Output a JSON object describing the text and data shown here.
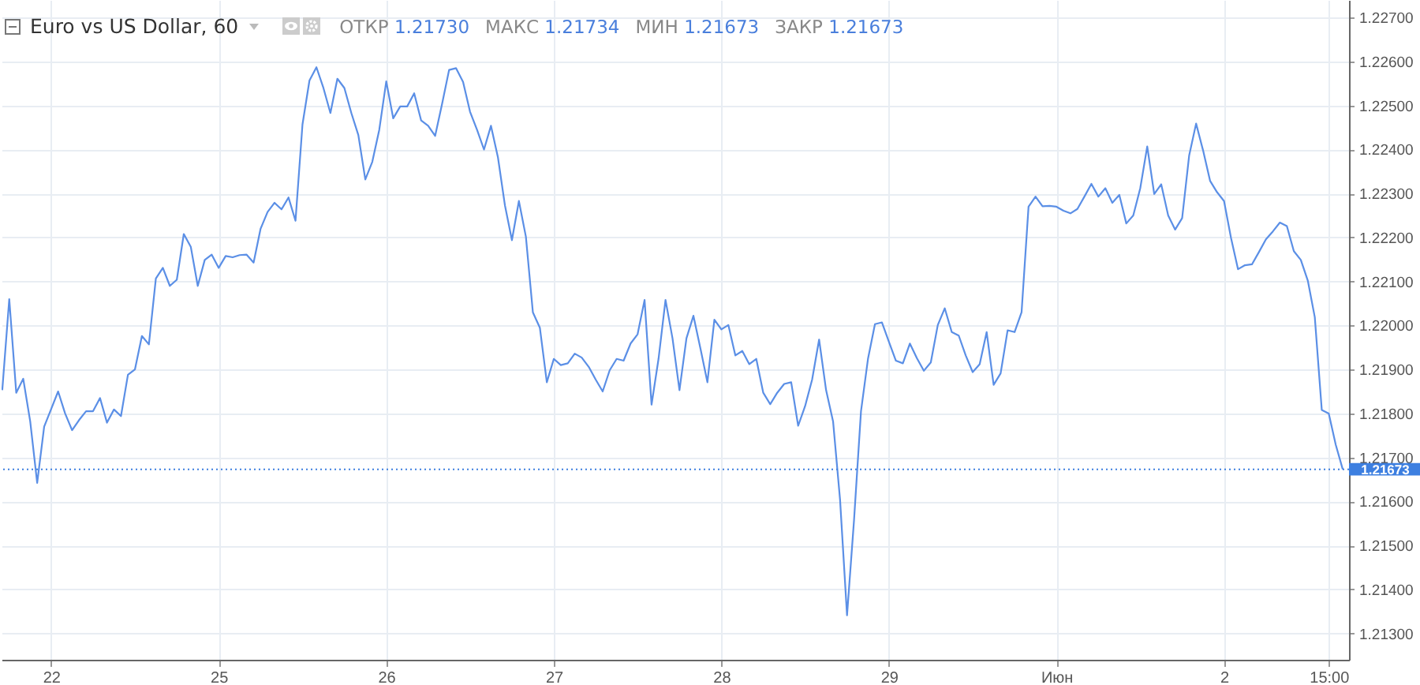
{
  "chart_data": {
    "type": "line",
    "title": "Euro vs US Dollar, 60",
    "annotations": [
      "ОТКР 1.21730",
      "МАКС 1.21734",
      "МИН 1.21673",
      "ЗАКР 1.21673"
    ],
    "categories": [
      null,
      null,
      null,
      null,
      null,
      null,
      null,
      "22",
      null,
      null,
      null,
      null,
      null,
      null,
      null,
      null,
      null,
      null,
      null,
      null,
      null,
      null,
      null,
      null,
      null,
      null,
      null,
      null,
      null,
      null,
      null,
      "25",
      null,
      null,
      null,
      null,
      null,
      null,
      null,
      null,
      null,
      null,
      null,
      null,
      null,
      null,
      null,
      null,
      null,
      null,
      null,
      null,
      null,
      null,
      null,
      "26",
      null,
      null,
      null,
      null,
      null,
      null,
      null,
      null,
      null,
      null,
      null,
      null,
      null,
      null,
      null,
      null,
      null,
      null,
      null,
      null,
      null,
      null,
      null,
      "27",
      null,
      null,
      null,
      null,
      null,
      null,
      null,
      null,
      null,
      null,
      null,
      null,
      null,
      null,
      null,
      null,
      null,
      null,
      null,
      null,
      null,
      null,
      null,
      "28",
      null,
      null,
      null,
      null,
      null,
      null,
      null,
      null,
      null,
      null,
      null,
      null,
      null,
      null,
      null,
      null,
      null,
      null,
      null,
      null,
      null,
      null,
      null,
      "29",
      null,
      null,
      null,
      null,
      null,
      null,
      null,
      null,
      null,
      null,
      null,
      null,
      null,
      null,
      null,
      null,
      null,
      null,
      null,
      null,
      null,
      null,
      null,
      "Июн",
      null,
      null,
      null,
      null,
      null,
      null,
      null,
      null,
      null,
      null,
      null,
      null,
      null,
      null,
      null,
      null,
      null,
      null,
      null,
      null,
      null,
      null,
      null,
      "2",
      null,
      null,
      null,
      null,
      null,
      null,
      null,
      null,
      null,
      null,
      null,
      null,
      null,
      null,
      "15:00",
      null,
      null
    ],
    "series": [
      {
        "color": "#5b8fe6",
        "values": [
          1.21853,
          1.2206,
          1.21847,
          1.21879,
          1.21782,
          1.21642,
          1.2177,
          1.2181,
          1.2185,
          1.218,
          1.21762,
          1.21785,
          1.21805,
          1.21805,
          1.21835,
          1.21779,
          1.21809,
          1.21794,
          1.21888,
          1.219,
          1.21976,
          1.21957,
          1.22107,
          1.22131,
          1.2209,
          1.22104,
          1.22208,
          1.22179,
          1.2209,
          1.22149,
          1.22161,
          1.22131,
          1.22158,
          1.22155,
          1.2216,
          1.22161,
          1.22143,
          1.2222,
          1.22258,
          1.22279,
          1.22264,
          1.22291,
          1.22238,
          1.22457,
          1.22557,
          1.22587,
          1.2254,
          1.22483,
          1.22561,
          1.2254,
          1.22483,
          1.22433,
          1.22332,
          1.22372,
          1.22445,
          1.22555,
          1.22471,
          1.22498,
          1.22498,
          1.22528,
          1.22466,
          1.22454,
          1.22431,
          1.22504,
          1.22581,
          1.22585,
          1.22554,
          1.22486,
          1.22445,
          1.224,
          1.22454,
          1.22382,
          1.22273,
          1.22194,
          1.22283,
          1.22202,
          1.2203,
          1.21995,
          1.21871,
          1.21924,
          1.2191,
          1.21914,
          1.21936,
          1.21927,
          1.21906,
          1.21877,
          1.2185,
          1.21898,
          1.21924,
          1.2192,
          1.21959,
          1.2198,
          1.22058,
          1.2182,
          1.21924,
          1.22058,
          1.21971,
          1.21853,
          1.21971,
          1.22022,
          1.21948,
          1.21871,
          1.22013,
          1.21991,
          1.22001,
          1.21932,
          1.21942,
          1.21912,
          1.21924,
          1.21847,
          1.21821,
          1.21847,
          1.21867,
          1.21871,
          1.21772,
          1.21817,
          1.21877,
          1.21968,
          1.21853,
          1.21782,
          1.21604,
          1.21341,
          1.21557,
          1.21805,
          1.21924,
          1.22003,
          1.22007,
          1.21963,
          1.2192,
          1.21914,
          1.21959,
          1.21926,
          1.21897,
          1.21916,
          1.22001,
          1.22039,
          1.21985,
          1.21977,
          1.21932,
          1.21894,
          1.21912,
          1.21985,
          1.21865,
          1.21891,
          1.21989,
          1.21985,
          1.2203,
          1.2227,
          1.22293,
          1.22271,
          1.22272,
          1.2227,
          1.22261,
          1.22255,
          1.22265,
          1.22293,
          1.22322,
          1.22293,
          1.22312,
          1.22279,
          1.22297,
          1.22232,
          1.2225,
          1.22312,
          1.22407,
          1.22299,
          1.22321,
          1.2225,
          1.22218,
          1.22244,
          1.22386,
          1.22459,
          1.22398,
          1.22329,
          1.22303,
          1.22283,
          1.22199,
          1.22128,
          1.22137,
          1.22139,
          1.22167,
          1.22196,
          1.22214,
          1.22234,
          1.22226,
          1.22169,
          1.22149,
          1.22102,
          1.22019,
          1.21808,
          1.218,
          1.21729,
          1.21673
        ]
      }
    ],
    "ylim": [
      1.2124,
      1.2274
    ],
    "yticks": [
      {
        "value": 1.213,
        "label": "1.21300"
      },
      {
        "value": 1.214,
        "label": "1.21400"
      },
      {
        "value": 1.215,
        "label": "1.21500"
      },
      {
        "value": 1.216,
        "label": "1.21600"
      },
      {
        "value": 1.217,
        "label": "1.21700"
      },
      {
        "value": 1.218,
        "label": "1.21800"
      },
      {
        "value": 1.219,
        "label": "1.21900"
      },
      {
        "value": 1.22,
        "label": "1.22000"
      },
      {
        "value": 1.221,
        "label": "1.22100"
      },
      {
        "value": 1.222,
        "label": "1.22200"
      },
      {
        "value": 1.223,
        "label": "1.22300"
      },
      {
        "value": 1.224,
        "label": "1.22400"
      },
      {
        "value": 1.225,
        "label": "1.22500"
      },
      {
        "value": 1.226,
        "label": "1.22600"
      },
      {
        "value": 1.227,
        "label": "1.22700"
      }
    ],
    "ref_lines": [
      {
        "axis": "y",
        "value": 1.21673,
        "label": "1.21673",
        "color": "#3d7fe0",
        "line_style": "dotted"
      }
    ],
    "grid": true,
    "line_style": "solid",
    "marker": "none"
  }
}
